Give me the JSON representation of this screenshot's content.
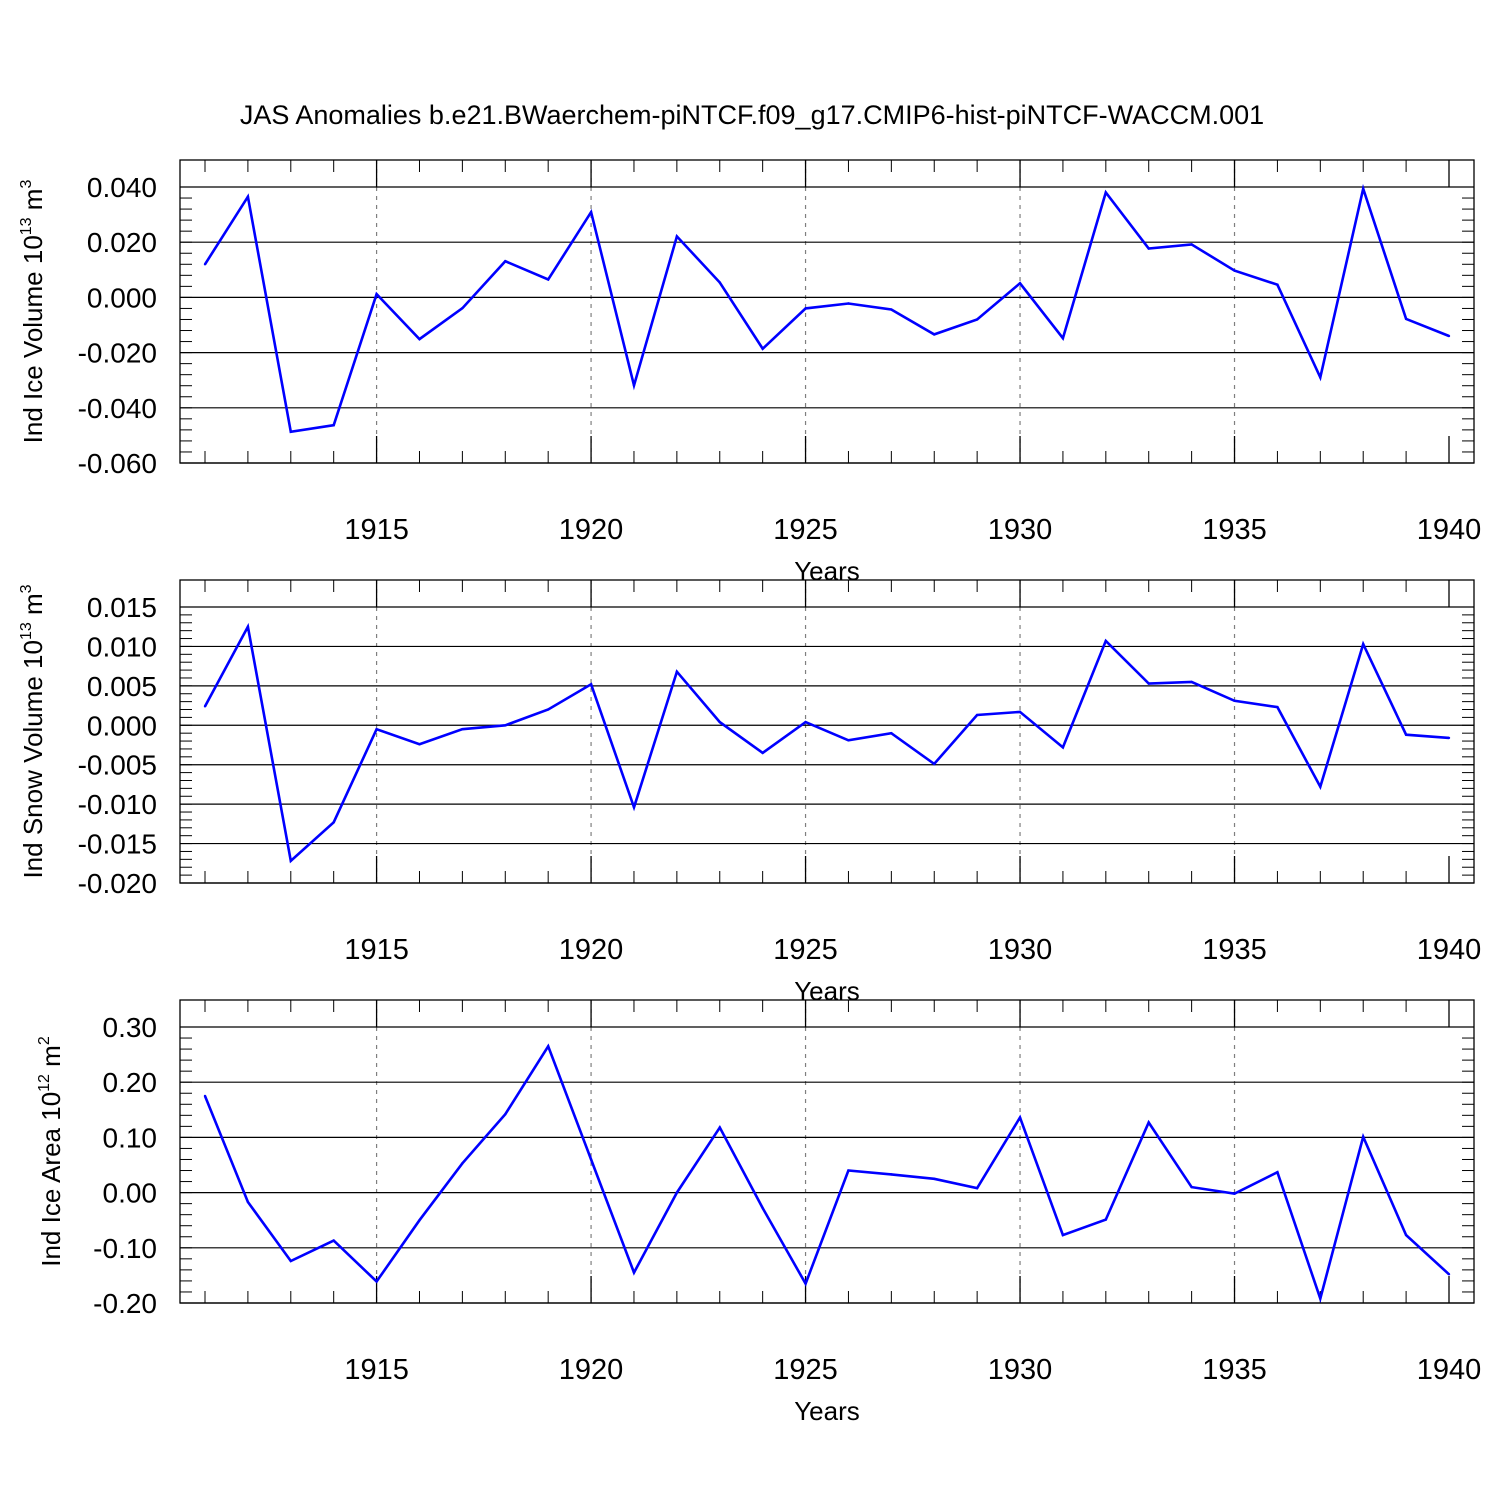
{
  "title": "JAS Anomalies b.e21.BWaerchem-piNTCF.f09_g17.CMIP6-hist-piNTCF-WACCM.001",
  "colors": {
    "line": "#0000ff",
    "axis": "#000000",
    "grid": "#7f7f7f"
  },
  "chart_data": [
    {
      "type": "line",
      "ylabel_base": "Ind Ice Volume 10",
      "ylabel_exp": "13",
      "ylabel_unit": " m",
      "ylabel_unit_exp": "3",
      "xlabel": "Years",
      "xlim": [
        1911,
        1940
      ],
      "ylim": [
        -0.06,
        0.04
      ],
      "yticks": [
        "0.040",
        "0.020",
        "0.000",
        "-0.020",
        "-0.040",
        "-0.060"
      ],
      "ytick_values": [
        0.04,
        0.02,
        0.0,
        -0.02,
        -0.04,
        -0.06
      ],
      "yminor_step": 0.004,
      "xticks": [
        "1915",
        "1920",
        "1925",
        "1930",
        "1935",
        "1940"
      ],
      "xtick_values": [
        1915,
        1920,
        1925,
        1930,
        1935,
        1940
      ],
      "x": [
        1911,
        1912,
        1913,
        1914,
        1915,
        1916,
        1917,
        1918,
        1919,
        1920,
        1921,
        1922,
        1923,
        1924,
        1925,
        1926,
        1927,
        1928,
        1929,
        1930,
        1931,
        1932,
        1933,
        1934,
        1935,
        1936,
        1937,
        1938,
        1939,
        1940
      ],
      "values": [
        0.012,
        0.0365,
        -0.0487,
        -0.0463,
        0.0012,
        -0.0151,
        -0.0039,
        0.0131,
        0.0065,
        0.0309,
        -0.0319,
        0.0221,
        0.0054,
        -0.0186,
        -0.004,
        -0.0022,
        -0.0044,
        -0.0134,
        -0.008,
        0.0051,
        -0.0148,
        0.038,
        0.0177,
        0.0192,
        0.0097,
        0.0046,
        -0.029,
        0.0394,
        -0.0078,
        -0.014
      ]
    },
    {
      "type": "line",
      "ylabel_base": "Ind Snow Volume 10",
      "ylabel_exp": "13",
      "ylabel_unit": " m",
      "ylabel_unit_exp": "3",
      "xlabel": "Years",
      "xlim": [
        1911,
        1940
      ],
      "ylim": [
        -0.02,
        0.015
      ],
      "yticks": [
        "0.015",
        "0.010",
        "0.005",
        "0.000",
        "-0.005",
        "-0.010",
        "-0.015",
        "-0.020"
      ],
      "ytick_values": [
        0.015,
        0.01,
        0.005,
        0.0,
        -0.005,
        -0.01,
        -0.015,
        -0.02
      ],
      "yminor_step": 0.001,
      "xticks": [
        "1915",
        "1920",
        "1925",
        "1930",
        "1935",
        "1940"
      ],
      "xtick_values": [
        1915,
        1920,
        1925,
        1930,
        1935,
        1940
      ],
      "x": [
        1911,
        1912,
        1913,
        1914,
        1915,
        1916,
        1917,
        1918,
        1919,
        1920,
        1921,
        1922,
        1923,
        1924,
        1925,
        1926,
        1927,
        1928,
        1929,
        1930,
        1931,
        1932,
        1933,
        1934,
        1935,
        1936,
        1937,
        1938,
        1939,
        1940
      ],
      "values": [
        0.0024,
        0.0125,
        -0.0172,
        -0.0123,
        -0.0005,
        -0.0024,
        -0.0005,
        0.0,
        0.002,
        0.0052,
        -0.0104,
        0.0068,
        0.0004,
        -0.0035,
        0.0004,
        -0.0019,
        -0.001,
        -0.0049,
        0.0013,
        0.0017,
        -0.0028,
        0.0107,
        0.0053,
        0.0055,
        0.0031,
        0.0023,
        -0.0078,
        0.0103,
        -0.0012,
        -0.0016
      ]
    },
    {
      "type": "line",
      "ylabel_base": "Ind Ice Area 10",
      "ylabel_exp": "12",
      "ylabel_unit": " m",
      "ylabel_unit_exp": "2",
      "xlabel": "Years",
      "xlim": [
        1911,
        1940
      ],
      "ylim": [
        -0.2,
        0.3
      ],
      "yticks": [
        "0.30",
        "0.20",
        "0.10",
        "0.00",
        "-0.10",
        "-0.20"
      ],
      "ytick_values": [
        0.3,
        0.2,
        0.1,
        0.0,
        -0.1,
        -0.2
      ],
      "yminor_step": 0.02,
      "xticks": [
        "1915",
        "1920",
        "1925",
        "1930",
        "1935",
        "1940"
      ],
      "xtick_values": [
        1915,
        1920,
        1925,
        1930,
        1935,
        1940
      ],
      "x": [
        1911,
        1912,
        1913,
        1914,
        1915,
        1916,
        1917,
        1918,
        1919,
        1920,
        1921,
        1922,
        1923,
        1924,
        1925,
        1926,
        1927,
        1928,
        1929,
        1930,
        1931,
        1932,
        1933,
        1934,
        1935,
        1936,
        1937,
        1938,
        1939,
        1940
      ],
      "values": [
        0.175,
        -0.017,
        -0.124,
        -0.087,
        -0.161,
        -0.05,
        0.053,
        0.142,
        0.265,
        0.06,
        -0.145,
        0.0,
        0.118,
        -0.028,
        -0.165,
        0.04,
        0.033,
        0.025,
        0.008,
        0.136,
        -0.077,
        -0.049,
        0.127,
        0.01,
        -0.002,
        0.037,
        -0.192,
        0.101,
        -0.077,
        -0.148
      ]
    }
  ]
}
